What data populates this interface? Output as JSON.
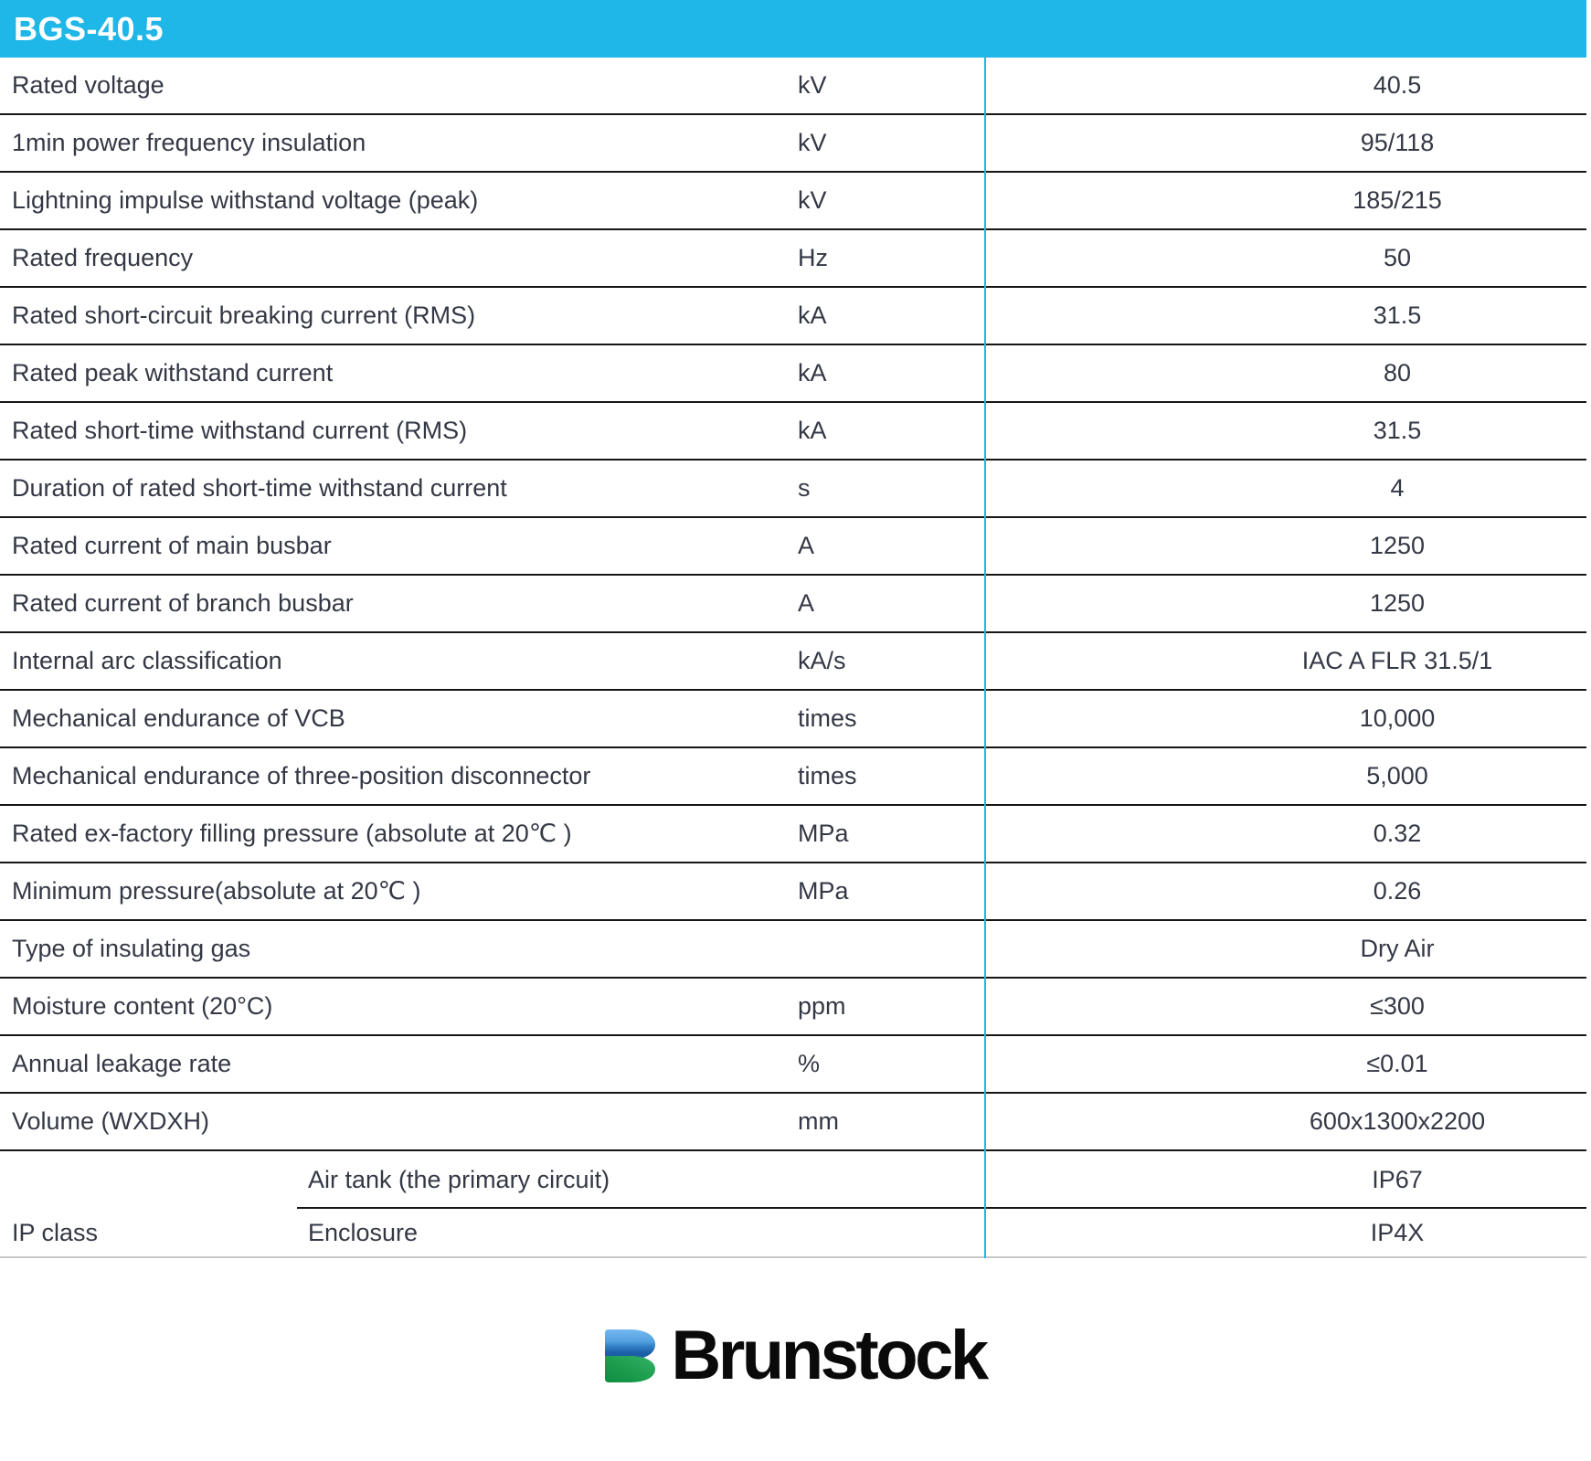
{
  "header": {
    "title": "BGS-40.5"
  },
  "table": {
    "rows": [
      {
        "label": "Rated voltage",
        "unit": "kV",
        "value": "40.5"
      },
      {
        "label": "1min power frequency insulation",
        "unit": "kV",
        "value": "95/118"
      },
      {
        "label": "Lightning impulse withstand voltage (peak)",
        "unit": "kV",
        "value": "185/215"
      },
      {
        "label": "Rated frequency",
        "unit": "Hz",
        "value": "50"
      },
      {
        "label": "Rated short-circuit breaking current (RMS)",
        "unit": "kA",
        "value": "31.5"
      },
      {
        "label": "Rated peak withstand current",
        "unit": "kA",
        "value": "80"
      },
      {
        "label": "Rated short-time withstand current (RMS)",
        "unit": "kA",
        "value": "31.5"
      },
      {
        "label": "Duration of rated short-time withstand current",
        "unit": "s",
        "value": "4"
      },
      {
        "label": "Rated current of main busbar",
        "unit": "A",
        "value": "1250"
      },
      {
        "label": "Rated current of branch busbar",
        "unit": "A",
        "value": "1250"
      },
      {
        "label": "Internal arc classification",
        "unit": "kA/s",
        "value": "IAC A FLR 31.5/1"
      },
      {
        "label": "Mechanical endurance of VCB",
        "unit": "times",
        "value": "10,000"
      },
      {
        "label": "Mechanical endurance of three-position disconnector",
        "unit": "times",
        "value": "5,000"
      },
      {
        "label": "Rated ex-factory filling pressure (absolute at 20℃ )",
        "unit": "MPa",
        "value": "0.32"
      },
      {
        "label": "Minimum pressure(absolute at 20℃ )",
        "unit": "MPa",
        "value": "0.26"
      },
      {
        "label": "Type of insulating gas",
        "unit": "",
        "value": "Dry Air"
      },
      {
        "label": "Moisture content (20°C)",
        "unit": "ppm",
        "value": "≤300"
      },
      {
        "label": "Annual leakage rate",
        "unit": "%",
        "value": "≤0.01"
      },
      {
        "label": "Volume (WXDXH)",
        "unit": "mm",
        "value": "600x1300x2200"
      }
    ],
    "ip_group": {
      "group_label": "IP class",
      "sub_rows": [
        {
          "label": "Air tank (the primary circuit)",
          "value": "IP67"
        },
        {
          "label": "Enclosure",
          "value": "IP4X"
        }
      ]
    }
  },
  "logo": {
    "text": "Brunstock",
    "icon": "brunstock-b-icon"
  },
  "colors": {
    "accent_cyan": "#1fb6e8",
    "line_dark": "#161616",
    "line_light": "#c9c9c9",
    "text": "#343845",
    "logo_blue_light": "#74b9f0",
    "logo_blue_dark": "#1d5fa6",
    "logo_green_light": "#35b268",
    "logo_green_dark": "#0f8c42"
  }
}
